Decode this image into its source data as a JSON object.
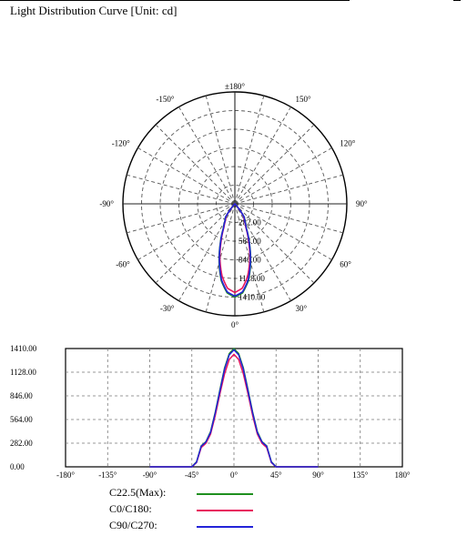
{
  "title": "Light Distribution Curve [Unit: cd]",
  "chart_data": [
    {
      "type": "polar",
      "angle_labels": [
        "±180°",
        "150°",
        "120°",
        "90°",
        "60°",
        "30°",
        "0°",
        "-30°",
        "-60°",
        "-90°",
        "-120°",
        "-150°"
      ],
      "radial_labels": [
        "282.00",
        "564.00",
        "846.00",
        "1128.00",
        "1410.00"
      ],
      "radial_max": 1410,
      "colors": {
        "C22.5": "#1f8f1f",
        "C0": "#e8175d",
        "C90": "#2323d8"
      }
    },
    {
      "type": "line",
      "xlim": [
        -180,
        180
      ],
      "ylim": [
        0,
        1410
      ],
      "x_ticks": [
        "-180°",
        "-135°",
        "-90°",
        "-45°",
        "0°",
        "45°",
        "90°",
        "135°",
        "180°"
      ],
      "y_ticks": [
        "0.00",
        "282.00",
        "564.00",
        "846.00",
        "1128.00",
        "1410.00"
      ],
      "x": [
        -180,
        -90,
        -45,
        -40,
        -35,
        -30,
        -25,
        -20,
        -15,
        -10,
        -5,
        0,
        5,
        10,
        15,
        20,
        25,
        30,
        35,
        40,
        45,
        90,
        180
      ],
      "series": [
        {
          "name": "C22.5(Max):",
          "color": "#1f8f1f",
          "values": [
            0,
            0,
            0,
            60,
            250,
            300,
            420,
            650,
            920,
            1180,
            1350,
            1410,
            1350,
            1180,
            920,
            650,
            420,
            300,
            250,
            60,
            0,
            0,
            0
          ]
        },
        {
          "name": "C0/C180:",
          "color": "#e8175d",
          "values": [
            0,
            0,
            0,
            50,
            230,
            280,
            390,
            610,
            870,
            1110,
            1280,
            1340,
            1280,
            1110,
            870,
            610,
            390,
            280,
            230,
            50,
            0,
            0,
            0
          ]
        },
        {
          "name": "C90/C270:",
          "color": "#2323d8",
          "values": [
            0,
            0,
            0,
            55,
            245,
            295,
            410,
            640,
            905,
            1165,
            1335,
            1395,
            1335,
            1165,
            905,
            640,
            410,
            295,
            245,
            55,
            0,
            0,
            0
          ]
        }
      ]
    }
  ]
}
